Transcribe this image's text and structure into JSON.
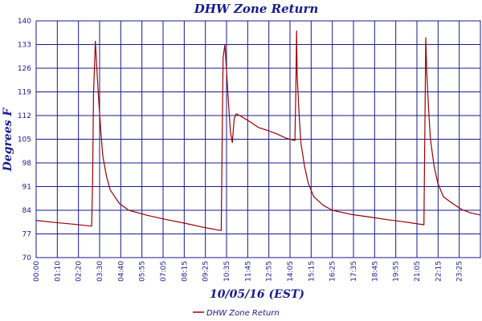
{
  "chart_data": {
    "type": "line",
    "title": "DHW Zone Return",
    "xlabel": "10/05/16 (EST)",
    "ylabel": "Degrees F",
    "ylim": [
      70,
      140
    ],
    "yticks": [
      70,
      77,
      84,
      91,
      98,
      105,
      112,
      119,
      126,
      133,
      140
    ],
    "xticks": [
      "00:00",
      "01:10",
      "02:20",
      "03:30",
      "04:40",
      "05:55",
      "07:05",
      "08:15",
      "09:25",
      "10:35",
      "11:45",
      "12:55",
      "14:05",
      "15:15",
      "16:25",
      "17:35",
      "18:45",
      "19:55",
      "21:05",
      "22:15",
      "23:25"
    ],
    "xrange_hours": [
      0,
      24
    ],
    "grid": true,
    "legend": "bottom",
    "colors": {
      "series": "#990000",
      "grid": "#1a1a8c",
      "text": "#1a1a8c"
    },
    "series": [
      {
        "name": "DHW Zone Return",
        "x": [
          0.0,
          1.0,
          2.0,
          3.0,
          3.05,
          3.1,
          3.2,
          3.3,
          3.4,
          3.5,
          3.6,
          3.8,
          4.0,
          4.5,
          5.0,
          6.0,
          7.0,
          8.0,
          9.0,
          10.0,
          10.05,
          10.1,
          10.2,
          10.3,
          10.4,
          10.5,
          10.6,
          10.7,
          10.8,
          11.0,
          11.3,
          11.6,
          12.0,
          12.5,
          13.0,
          13.5,
          13.98,
          14.03,
          14.07,
          14.1,
          14.2,
          14.3,
          14.5,
          14.7,
          15.0,
          15.5,
          16.0,
          17.0,
          18.0,
          19.0,
          20.0,
          20.95,
          21.0,
          21.05,
          21.1,
          21.2,
          21.3,
          21.5,
          21.7,
          22.0,
          22.5,
          23.0,
          23.5,
          24.0
        ],
        "y": [
          81.0,
          80.4,
          79.9,
          79.3,
          93,
          118,
          134,
          124,
          115,
          107,
          100,
          94,
          90,
          86,
          84,
          82.5,
          81.3,
          80.2,
          79.0,
          78.0,
          106,
          129,
          133,
          124,
          115,
          107,
          104,
          111,
          112.5,
          112,
          111,
          110,
          108.5,
          107.6,
          106.6,
          105.3,
          104.6,
          120,
          137,
          124,
          113,
          104,
          97,
          92,
          88,
          85.5,
          84,
          82.8,
          82.0,
          81.2,
          80.5,
          79.7,
          108,
          135,
          125,
          114,
          105,
          97,
          92,
          88,
          86,
          84.2,
          83.2,
          82.6
        ]
      }
    ]
  }
}
